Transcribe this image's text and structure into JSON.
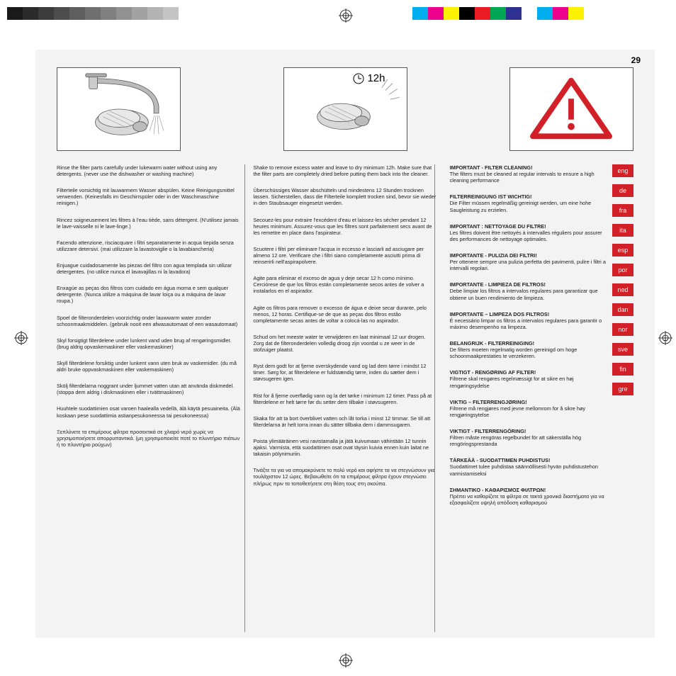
{
  "page_number": "29",
  "colorbar_grays": [
    "#1a1a1a",
    "#2b2b2b",
    "#3c3c3c",
    "#4d4d4d",
    "#5e5e5e",
    "#6f6f6f",
    "#808080",
    "#919191",
    "#a2a2a2",
    "#b3b3b3",
    "#c4c4c4",
    "#ffffff"
  ],
  "colorbar_colors": [
    "#00aeef",
    "#ec008c",
    "#fff200",
    "#000000",
    "#ed1c24",
    "#00a651",
    "#2e3192",
    "#ffffff",
    "#00aeef",
    "#ec008c",
    "#fff200"
  ],
  "illus2_label": "12h",
  "col1": [
    "Rinse the filter parts carefully under lukewarm water without using any detergents. (never use the dishwasher or washing machine)",
    "Filterteile vorsichtig mit lauwarmem Wasser abspülen. Keine Reinigungsmittel verwenden.\n(Keinesfalls im Geschirrspüler oder in der Waschmaschine reinigen.)",
    "Rincez soigneusement les filtres à l'eau tiède, sans détergent.\n(N'utilisez jamais le lave-vaisselle ni le lave-linge.)",
    "Facendo attenzione, risciacquare i filtri separatamente in acqua tiepida senza utilizzare detersivi.\n(mai utilizzare la lavastoviglie o la lavabiancheria)",
    "Enjuague cuidadosamente las piezas del filtro con agua templada sin utilizar detergentes.\n(no utilice nunca el lavavajillas ni la lavadora)",
    "Enxagúe as peças dos filtros com cuidado em água morna e sem qualquer detergente.\n(Nunca utilize a máquina de lavar loiça ou a máquina de lavar roupa.)",
    "Spoel de filteronderdelen voorzichtig onder lauwwarm water zonder schoonmaakmiddelen.\n(gebruik nooit een afwasautomaat of een wasautomaat)",
    "Skyl forsigtigt filterdelene under lunkent vand uden brug af rengøringsmidler.\n(brug aldrig opvaskemaskiner eller vaskemaskiner)",
    "Skyll filterdelene forsiktig under lunkent vann uten bruk av vaskemidler.\n(du må aldri bruke oppvaskmaskinen eller vaskemaskinen)",
    "Skölj filterdelarna noggrant under ljummet vatten utan att använda diskmedel.\n(stoppa dem aldrig i diskmaskinen eller i tvättmaskinen)",
    "Huuhtele suodattimien osat varoen haalealla vedellä, älä käytä pesuaineita.\n(Älä koskaan pese suodattimia astianpesukoneessa tai pesukoneessa)",
    "Ξεπλύνετε τα επιμέρους φίλτρα προσεκτικά σε χλιαρό νερό χωρίς να χρησιμοποιήσετε απορρυπαντικά.\n(μη χρησιμοποιείτε ποτέ το πλυντήριο πιάτων ή το πλυντήριο ρούχων)"
  ],
  "col2": [
    "Shake to remove excess water and leave to dry minimum 12h.\nMake sure that the filter parts are completely dried before putting them back into the cleaner.",
    "Überschüssiges Wasser abschütteln und mindestens 12 Stunden trocknen lassen. Sicherstellen, dass die Filterteile komplett trocken sind, bevor sie wieder in den Staubsauger eingesetzt werden.",
    "Secouez-les pour extraire l'excédent d'eau et laissez-les sécher pendant 12 heures minimum.\nAssurez-vous que les filtres sont parfaitement secs avant de les remettre en place dans l'aspirateur.",
    "Scuotere i filtri per eliminare l'acqua in eccesso e lasciarli ad asciugare per almeno 12 ore.\nVerificare che i filtri siano completamente asciutti prima di reinserirli nell'aspirapolvere.",
    "Agite para eliminar el exceso de agua y deje secar 12 h como mínimo.\nCerciórese de que los filtros están completamente secos antes de volver a instalarlos en el aspirador.",
    "Agite os filtros para remover o excesso de água e deixe secar durante, pelo menos, 12 horas.\nCertifique-se de que as peças dos filtros estão completamente secas antes de voltar a colocá-las no aspirador.",
    "Schud om het meeste water te verwijderen en laat minimaal 12 uur drogen.\nZorg dat de filteronderdelen volledig droog zijn voordat u ze weer in de stofzuiger plaatst.",
    "Ryst dem godt for at fjerne overskydende vand og lad dem tørre i mindst 12 timer.\nSørg for, at filterdelene er fuldstændig tørre, inden du sætter dem i støvsugeren igen.",
    "Rist for å fjerne overflødig vann og la det tørke i minimum 12 timer.\nPass på at filterdelene er helt tørre før du setter dem tilbake i støvsugeren.",
    "Skaka för att ta bort överblivet vatten och låt torka i minst 12 timmar.\nSe till att filterdelarna är helt torra innan du sätter tillbaka dem i dammsugaren.",
    "Poista ylimääräinen vesi ravistamalla ja jätä kuivumaan vähintään 12 tunnin ajaksi.\nVarmista, että suodattimen osat ovat täysin kuivia ennen kuin laitat ne takaisin pölynimuriin.",
    "Τινάξτε τα για να απομακρύνετε το πολύ νερό και αφήστε τα να στεγνώσουν για τουλάχιστον 12 ώρες. Βεβαιωθείτε ότι τα επιμέρους φίλτρα έχουν στεγνώσει πλήρως πριν τα τοποθετήσετε στη θέση τους στη σκούπα."
  ],
  "col3": [
    {
      "h": "IMPORTANT - FILTER CLEANING!",
      "b": "The filters must be cleaned at regular intervals to ensure a high cleaning performance"
    },
    {
      "h": "FILTERREINIGUNG IST WICHTIG!",
      "b": "Die Filter müssen regelmäßig gereinigt werden, um eine hohe Saugleistung zu erzielen."
    },
    {
      "h": "IMPORTANT : NETTOYAGE DU FILTRE!",
      "b": "Les filtres doivent être nettoyés à intervalles réguliers pour assurer des performances de nettoyage optimales."
    },
    {
      "h": "IMPORTANTE - PULIZIA DEI FILTRI!",
      "b": "Per ottenere sempre una pulizia perfetta dei pavimenti, pulire i filtri a intervalli regolari."
    },
    {
      "h": "IMPORTANTE - LIMPIEZA DE FILTROS!",
      "b": "Debe limpiar los filtros a intervalos regulares para garantizar que obtiene un buen rendimiento de limpieza."
    },
    {
      "h": "IMPORTANTE – LIMPEZA DOS FILTROS!",
      "b": "É necessário limpar os filtros a intervalos regulares para garantir o máximo desempenho na limpeza."
    },
    {
      "h": "BELANGRIJK - FILTERREINIGING!",
      "b": "De filters moeten regelmatig worden gereinigd om hoge schoonmaakprestaties te verzekeren."
    },
    {
      "h": "VIGTIGT - RENGØRING AF FILTER!",
      "b": "Filtrene skal rengøres regelmæssigt for at sikre en høj rengøringsydelse"
    },
    {
      "h": "VIKTIG – FILTERRENGJØRING!",
      "b": "Filtrene må rengjøres med jevne mellomrom for å sikre høy rengjøringsytelse"
    },
    {
      "h": "VIKTIGT - FILTERRENGÖRING!",
      "b": "Filtren måste rengöras regelbundet för att säkerställa hög rengöringsprestanda"
    },
    {
      "h": "TÄRKEÄÄ - SUODATTIMEN PUHDISTUS!",
      "b": "Suodattimet tulee puhdistaa säännöllisesti hyvän puhdistustehon varmistamiseksi"
    },
    {
      "h": "ΣΗΜΑΝΤΙΚΟ - ΚΑΘΑΡΙΣΜΟΣ ΦΙΛΤΡΩΝ!",
      "b": "Πρέπει να καθαρίζετε τα φίλτρα σε τακτά χρονικά διαστήματα για να εξασφαλίζετε υψηλή απόδοση καθαρισμού"
    }
  ],
  "langs": [
    "eng",
    "de",
    "fra",
    "ita",
    "esp",
    "por",
    "ned",
    "dan",
    "nor",
    "sve",
    "fin",
    "gre"
  ],
  "accent": "#d12027"
}
